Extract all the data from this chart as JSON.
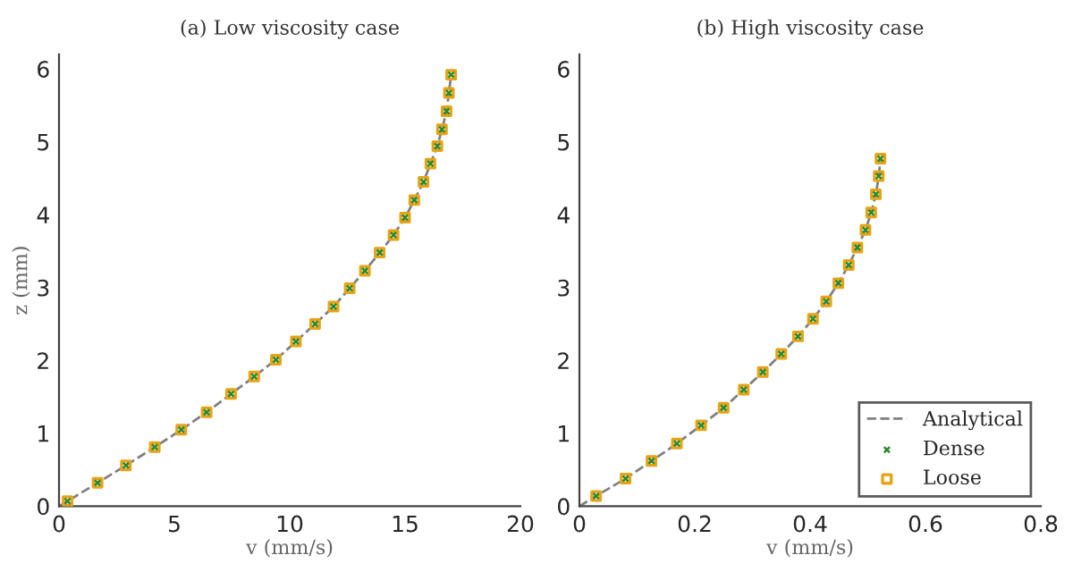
{
  "chart_data": [
    {
      "type": "scatter",
      "title": "(a) Low viscosity case",
      "xlabel": "v (mm/s)",
      "ylabel": "z (mm)",
      "xlim": [
        0,
        20
      ],
      "xticks": [
        0,
        5,
        10,
        15,
        20
      ],
      "ylim": [
        0,
        6.2
      ],
      "yticks": [
        0,
        1,
        2,
        3,
        4,
        5,
        6
      ],
      "grid": false,
      "legend": false,
      "series": [
        {
          "type": "line",
          "line_style": "dashed",
          "marker": "none",
          "color": "#808080",
          "x": [
            0,
            0.37,
            1.67,
            2.9,
            4.15,
            5.3,
            6.4,
            7.46,
            8.46,
            9.4,
            10.27,
            11.1,
            11.9,
            12.6,
            13.26,
            13.9,
            14.5,
            15.0,
            15.4,
            15.8,
            16.1,
            16.4,
            16.6,
            16.8,
            16.9,
            17.0
          ],
          "values": [
            0,
            0.07,
            0.32,
            0.56,
            0.81,
            1.05,
            1.29,
            1.54,
            1.78,
            2.01,
            2.26,
            2.5,
            2.74,
            2.99,
            3.23,
            3.48,
            3.72,
            3.96,
            4.2,
            4.45,
            4.7,
            4.94,
            5.17,
            5.42,
            5.67,
            5.92
          ]
        },
        {
          "marker": "square",
          "color": "#e8a317",
          "x": [
            0.37,
            1.67,
            2.9,
            4.15,
            5.3,
            6.4,
            7.46,
            8.46,
            9.4,
            10.27,
            11.1,
            11.9,
            12.6,
            13.26,
            13.9,
            14.5,
            15.0,
            15.4,
            15.8,
            16.1,
            16.4,
            16.6,
            16.8,
            16.9,
            17.0
          ],
          "values": [
            0.07,
            0.32,
            0.56,
            0.81,
            1.05,
            1.29,
            1.54,
            1.78,
            2.01,
            2.26,
            2.5,
            2.74,
            2.99,
            3.23,
            3.48,
            3.72,
            3.96,
            4.2,
            4.45,
            4.7,
            4.94,
            5.17,
            5.42,
            5.67,
            5.92
          ]
        },
        {
          "marker": "cross",
          "color": "#2a8a2a",
          "x": [
            0.37,
            1.67,
            2.9,
            4.15,
            5.3,
            6.4,
            7.46,
            8.46,
            9.4,
            10.27,
            11.1,
            11.9,
            12.6,
            13.26,
            13.9,
            14.5,
            15.0,
            15.4,
            15.8,
            16.1,
            16.4,
            16.6,
            16.8,
            16.9,
            17.0
          ],
          "values": [
            0.07,
            0.32,
            0.56,
            0.81,
            1.05,
            1.29,
            1.54,
            1.78,
            2.01,
            2.26,
            2.5,
            2.74,
            2.99,
            3.23,
            3.48,
            3.72,
            3.96,
            4.2,
            4.45,
            4.7,
            4.94,
            5.17,
            5.42,
            5.67,
            5.92
          ]
        }
      ]
    },
    {
      "type": "scatter",
      "title": "(b) High viscosity case",
      "xlabel": "v (mm/s)",
      "xlim": [
        0,
        0.8
      ],
      "xticks": [
        0,
        0.2,
        0.4,
        0.6,
        0.8
      ],
      "ylim": [
        0,
        6.2
      ],
      "yticks": [
        0,
        1,
        2,
        3,
        4,
        5,
        6
      ],
      "grid": false,
      "legend": "bottom right",
      "series": [
        {
          "name": "Analytical",
          "type": "line",
          "line_style": "dashed",
          "marker": "none",
          "color": "#808080",
          "x": [
            0,
            0.029,
            0.08,
            0.125,
            0.169,
            0.211,
            0.25,
            0.285,
            0.318,
            0.35,
            0.379,
            0.405,
            0.428,
            0.449,
            0.467,
            0.482,
            0.496,
            0.506,
            0.514,
            0.519,
            0.522
          ],
          "values": [
            0,
            0.14,
            0.38,
            0.62,
            0.86,
            1.11,
            1.35,
            1.6,
            1.84,
            2.09,
            2.33,
            2.57,
            2.81,
            3.06,
            3.31,
            3.55,
            3.79,
            4.03,
            4.28,
            4.53,
            4.77
          ]
        },
        {
          "name": "Dense",
          "marker": "cross",
          "color": "#2a8a2a",
          "x": [
            0.029,
            0.08,
            0.125,
            0.169,
            0.211,
            0.25,
            0.285,
            0.318,
            0.35,
            0.379,
            0.405,
            0.428,
            0.449,
            0.467,
            0.482,
            0.496,
            0.506,
            0.514,
            0.519,
            0.522
          ],
          "values": [
            0.14,
            0.38,
            0.62,
            0.86,
            1.11,
            1.35,
            1.6,
            1.84,
            2.09,
            2.33,
            2.57,
            2.81,
            3.06,
            3.31,
            3.55,
            3.79,
            4.03,
            4.28,
            4.53,
            4.77
          ]
        },
        {
          "name": "Loose",
          "marker": "square",
          "color": "#e8a317",
          "x": [
            0.029,
            0.08,
            0.125,
            0.169,
            0.211,
            0.25,
            0.285,
            0.318,
            0.35,
            0.379,
            0.405,
            0.428,
            0.449,
            0.467,
            0.482,
            0.496,
            0.506,
            0.514,
            0.519,
            0.522
          ],
          "values": [
            0.14,
            0.38,
            0.62,
            0.86,
            1.11,
            1.35,
            1.6,
            1.84,
            2.09,
            2.33,
            2.57,
            2.81,
            3.06,
            3.31,
            3.55,
            3.79,
            4.03,
            4.28,
            4.53,
            4.77
          ]
        }
      ]
    }
  ]
}
